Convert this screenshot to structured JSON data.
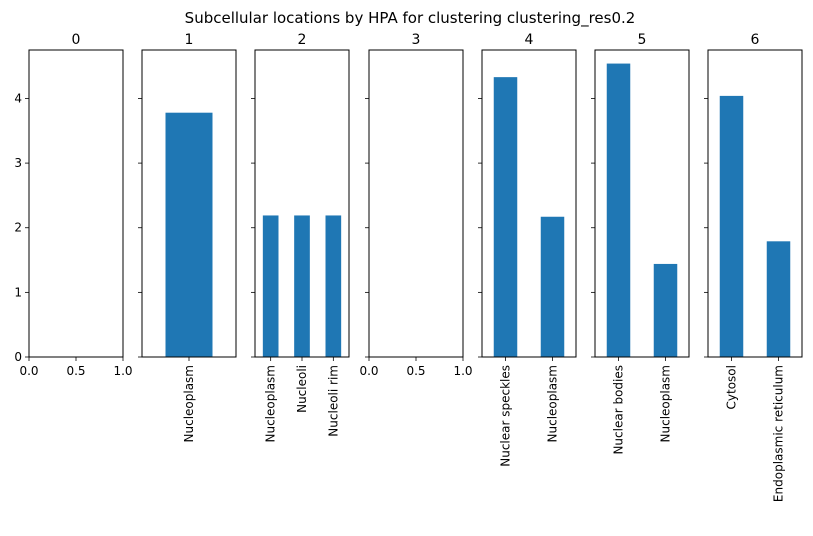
{
  "chart_data": {
    "title": "Subcellular locations by HPA for clustering clustering_res0.2",
    "type": "bar",
    "bar_color": "#1f77b4",
    "shared_y": true,
    "ylim": [
      0,
      4.75
    ],
    "yticks": [
      "0",
      "1",
      "2",
      "3",
      "4"
    ],
    "empty_xticks": [
      "0.0",
      "0.5",
      "1.0"
    ],
    "panels": [
      {
        "title": "0",
        "categories": [],
        "values": []
      },
      {
        "title": "1",
        "categories": [
          "Nucleoplasm"
        ],
        "values": [
          3.78
        ]
      },
      {
        "title": "2",
        "categories": [
          "Nucleoplasm",
          "Nucleoli",
          "Nucleoli rim"
        ],
        "values": [
          2.19,
          2.19,
          2.19
        ]
      },
      {
        "title": "3",
        "categories": [],
        "values": []
      },
      {
        "title": "4",
        "categories": [
          "Nuclear speckles",
          "Nucleoplasm"
        ],
        "values": [
          4.33,
          2.17
        ]
      },
      {
        "title": "5",
        "categories": [
          "Nuclear bodies",
          "Nucleoplasm"
        ],
        "values": [
          4.54,
          1.44
        ]
      },
      {
        "title": "6",
        "categories": [
          "Cytosol",
          "Endoplasmic reticulum"
        ],
        "values": [
          4.04,
          1.79
        ]
      }
    ]
  }
}
